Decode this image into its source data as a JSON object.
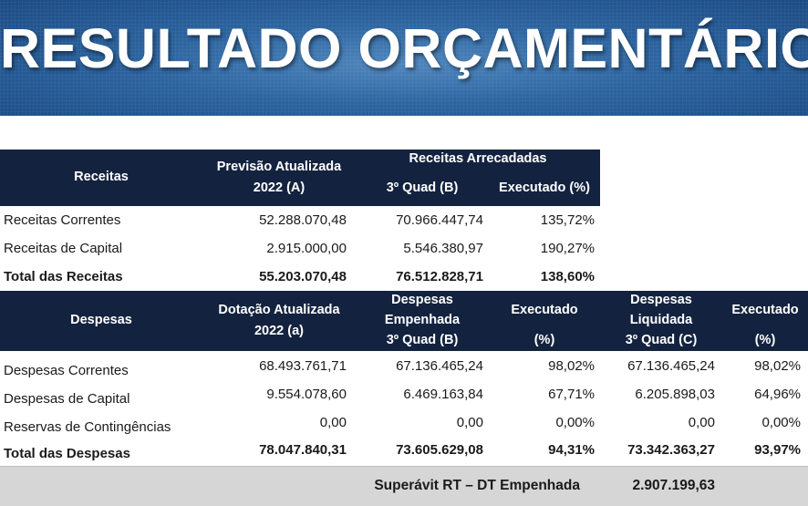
{
  "title": "RESULTADO ORÇAMENTÁRIO",
  "receitas": {
    "header": {
      "col1": "Receitas",
      "col2_line1": "Previsão Atualizada",
      "col2_line2": "2022 (A)",
      "group": "Receitas Arrecadadas",
      "col3": "3º Quad (B)",
      "col4": "Executado (%)"
    },
    "rows": [
      {
        "label": "Receitas Correntes",
        "previsao": "52.288.070,48",
        "quad": "70.966.447,74",
        "exec": "135,72%"
      },
      {
        "label": "Receitas de Capital",
        "previsao": "2.915.000,00",
        "quad": "5.546.380,97",
        "exec": "190,27%"
      }
    ],
    "total": {
      "label": "Total das Receitas",
      "previsao": "55.203.070,48",
      "quad": "76.512.828,71",
      "exec": "138,60%"
    }
  },
  "despesas": {
    "header": {
      "col1": "Despesas",
      "col2_line1": "Dotação Atualizada",
      "col2_line2": "2022 (a)",
      "col3_line1": "Despesas",
      "col3_line2": "Empenhada",
      "col3_line3": "3º Quad (B)",
      "col4_line1": "Executado",
      "col4_line2": "(%)",
      "col5_line1": "Despesas",
      "col5_line2": "Liquidada",
      "col5_line3": "3º Quad (C)",
      "col6_line1": "Executado",
      "col6_line2": "(%)"
    },
    "rows": [
      {
        "label": "Despesas Correntes",
        "dotacao": "68.493.761,71",
        "empenhada": "67.136.465,24",
        "exec1": "98,02%",
        "liquidada": "67.136.465,24",
        "exec2": "98,02%"
      },
      {
        "label": "Despesas de Capital",
        "dotacao": "9.554.078,60",
        "empenhada": "6.469.163,84",
        "exec1": "67,71%",
        "liquidada": "6.205.898,03",
        "exec2": "64,96%"
      },
      {
        "label": "Reservas de Contingências",
        "dotacao": "0,00",
        "empenhada": "0,00",
        "exec1": "0,00%",
        "liquidada": "0,00",
        "exec2": "0,00%"
      }
    ],
    "total": {
      "label": "Total das Despesas",
      "dotacao": "78.047.840,31",
      "empenhada": "73.605.629,08",
      "exec1": "94,31%",
      "liquidada": "73.342.363,27",
      "exec2": "93,97%"
    }
  },
  "footer": {
    "label": "Superávit RT – DT Empenhada",
    "value": "2.907.199,63"
  }
}
